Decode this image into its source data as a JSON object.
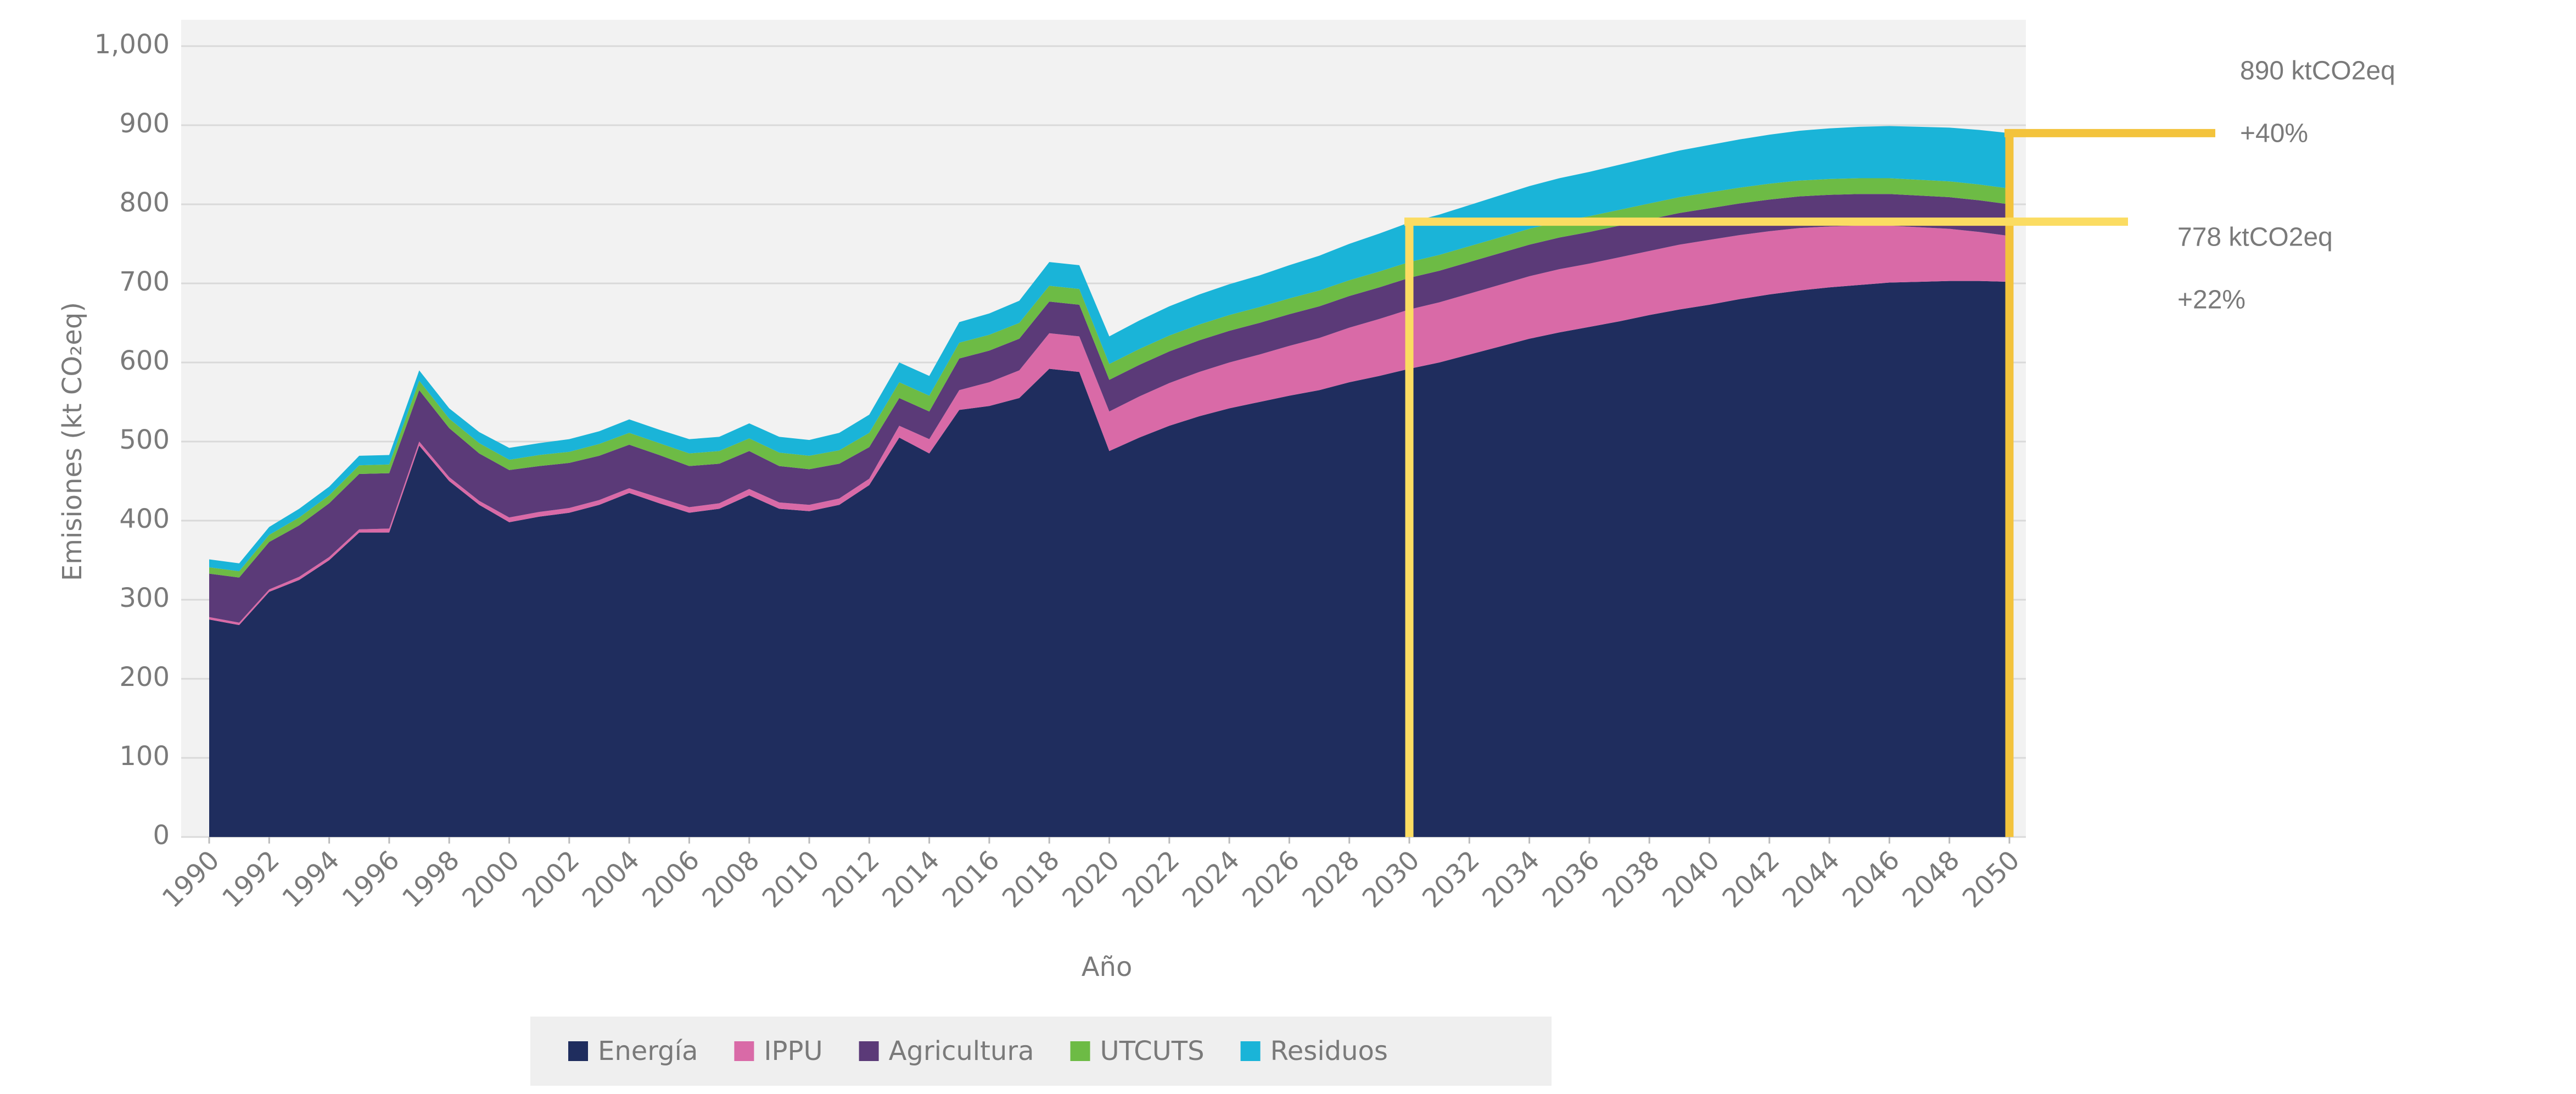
{
  "chart_data": {
    "type": "stacked_area",
    "x_label": "Año",
    "y_label": "Emisiones (kt CO₂eq)",
    "x": [
      1990,
      1991,
      1992,
      1993,
      1994,
      1995,
      1996,
      1997,
      1998,
      1999,
      2000,
      2001,
      2002,
      2003,
      2004,
      2005,
      2006,
      2007,
      2008,
      2009,
      2010,
      2011,
      2012,
      2013,
      2014,
      2015,
      2016,
      2017,
      2018,
      2019,
      2020,
      2021,
      2022,
      2023,
      2024,
      2025,
      2026,
      2027,
      2028,
      2029,
      2030,
      2031,
      2032,
      2033,
      2034,
      2035,
      2036,
      2037,
      2038,
      2039,
      2040,
      2041,
      2042,
      2043,
      2044,
      2045,
      2046,
      2047,
      2048,
      2049,
      2050
    ],
    "xlim": [
      1990,
      2050
    ],
    "xticks": [
      1990,
      1992,
      1994,
      1996,
      1998,
      2000,
      2002,
      2004,
      2006,
      2008,
      2010,
      2012,
      2014,
      2016,
      2018,
      2020,
      2022,
      2024,
      2026,
      2028,
      2030,
      2032,
      2034,
      2036,
      2038,
      2040,
      2042,
      2044,
      2046,
      2048,
      2050
    ],
    "ylim": [
      0,
      1000
    ],
    "yticks": [
      0,
      100,
      200,
      300,
      400,
      500,
      600,
      700,
      800,
      900,
      {
        "value": 1000,
        "label": "1,000"
      }
    ],
    "grid": true,
    "legend": "bottom",
    "series": [
      {
        "name": "Energía",
        "color": "#1f2d5e",
        "values": [
          275,
          268,
          310,
          325,
          350,
          385,
          385,
          495,
          450,
          420,
          398,
          405,
          410,
          420,
          435,
          422,
          410,
          415,
          432,
          415,
          412,
          420,
          445,
          505,
          485,
          540,
          545,
          555,
          592,
          588,
          488,
          505,
          520,
          532,
          542,
          550,
          558,
          565,
          575,
          583,
          592,
          600,
          610,
          620,
          630,
          638,
          645,
          652,
          660,
          667,
          673,
          680,
          686,
          691,
          695,
          698,
          701,
          702,
          703,
          703,
          702
        ]
      },
      {
        "name": "IPPU",
        "color": "#d96aa7",
        "values": [
          3,
          3,
          3,
          4,
          4,
          4,
          5,
          5,
          5,
          5,
          6,
          6,
          6,
          6,
          6,
          7,
          7,
          7,
          8,
          8,
          8,
          8,
          8,
          15,
          18,
          25,
          30,
          35,
          45,
          45,
          50,
          52,
          54,
          56,
          58,
          60,
          63,
          66,
          69,
          72,
          75,
          76,
          77,
          78,
          79,
          80,
          80,
          81,
          81,
          82,
          82,
          81,
          80,
          79,
          77,
          75,
          72,
          69,
          66,
          62,
          58
        ]
      },
      {
        "name": "Agricultura",
        "color": "#5b3a78",
        "values": [
          55,
          57,
          60,
          65,
          68,
          70,
          70,
          65,
          62,
          60,
          60,
          58,
          57,
          56,
          55,
          54,
          52,
          50,
          48,
          46,
          45,
          44,
          40,
          35,
          35,
          40,
          40,
          40,
          40,
          40,
          40,
          40,
          40,
          40,
          40,
          40,
          40,
          40,
          40,
          40,
          40,
          40,
          40,
          40,
          40,
          40,
          40,
          40,
          40,
          40,
          40,
          40,
          40,
          40,
          40,
          40,
          40,
          40,
          40,
          40,
          40
        ]
      },
      {
        "name": "UTCUTS",
        "color": "#6dbb45",
        "values": [
          8,
          8,
          9,
          10,
          10,
          11,
          11,
          12,
          12,
          13,
          13,
          14,
          14,
          15,
          15,
          15,
          16,
          16,
          16,
          17,
          17,
          17,
          18,
          20,
          20,
          20,
          20,
          20,
          20,
          20,
          20,
          20,
          20,
          20,
          20,
          20,
          20,
          20,
          20,
          20,
          20,
          20,
          20,
          20,
          20,
          20,
          20,
          20,
          20,
          20,
          20,
          20,
          20,
          20,
          20,
          20,
          20,
          20,
          20,
          20,
          20
        ]
      },
      {
        "name": "Residuos",
        "color": "#1ab4d8",
        "values": [
          10,
          10,
          10,
          11,
          11,
          12,
          12,
          13,
          13,
          14,
          15,
          15,
          16,
          16,
          17,
          17,
          18,
          18,
          19,
          20,
          20,
          22,
          23,
          25,
          25,
          26,
          27,
          28,
          30,
          30,
          35,
          36,
          37,
          38,
          39,
          40,
          42,
          44,
          46,
          48,
          50,
          51,
          52,
          53,
          54,
          55,
          56,
          57,
          58,
          59,
          60,
          61,
          62,
          63,
          64,
          65,
          66,
          67,
          68,
          69,
          70
        ]
      }
    ],
    "annotations": [
      {
        "x": 2050,
        "y": 890,
        "label": "890 ktCO2eq",
        "change": "+40%",
        "color": "#f3c33c"
      },
      {
        "x": 2030,
        "y": 778,
        "label": "778 ktCO2eq",
        "change": "+22%",
        "color": "#fbdc62"
      }
    ]
  }
}
